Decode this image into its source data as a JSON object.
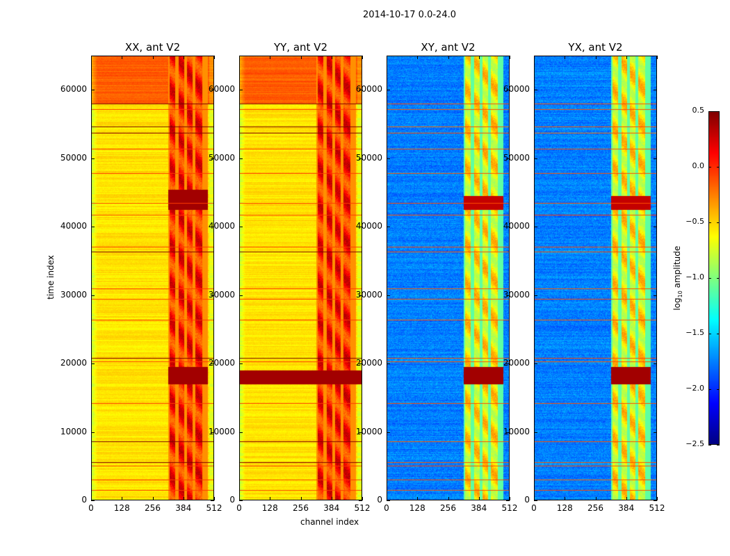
{
  "chart_data": {
    "type": "heatmap",
    "title": "2014-10-17 0.0-24.0",
    "xlabel": "channel index",
    "ylabel": "time index",
    "xlim": [
      0,
      512
    ],
    "ylim": [
      0,
      65000
    ],
    "xticks": [
      "0",
      "128",
      "256",
      "384",
      "512"
    ],
    "yticks": [
      "0",
      "10000",
      "20000",
      "30000",
      "40000",
      "50000",
      "60000"
    ],
    "ytick_values": [
      0,
      10000,
      20000,
      30000,
      40000,
      50000,
      60000
    ],
    "colormap": "jet",
    "colorbar": {
      "label": "log10 amplitude",
      "label_main": "log",
      "label_sub": "10",
      "label_rest": " amplitude",
      "clim": [
        -2.5,
        0.5
      ],
      "ticks": [
        "0.5",
        "0.0",
        "−0.5",
        "−1.0",
        "−1.5",
        "−2.0",
        "−2.5"
      ],
      "tick_values": [
        0.5,
        0,
        -0.5,
        -1,
        -1.5,
        -2,
        -2.5
      ]
    },
    "panels": [
      {
        "title": "XX, ant V2",
        "base_level": -0.55,
        "upper_level": -0.15,
        "band_level": 0.05,
        "hot_time": [
          17000,
          19500
        ],
        "hot_full_width": false
      },
      {
        "title": "YY, ant V2",
        "base_level": -0.55,
        "upper_level": -0.15,
        "band_level": 0.05,
        "hot_time": [
          17000,
          19000
        ],
        "hot_full_width": true
      },
      {
        "title": "XY, ant V2",
        "base_level": -1.75,
        "upper_level": -1.75,
        "band_level": -0.6,
        "hot_time": [
          17000,
          19500
        ],
        "hot_full_width": false
      },
      {
        "title": "YX, ant V2",
        "base_level": -1.75,
        "upper_level": -1.75,
        "band_level": -0.6,
        "hot_time": [
          17000,
          19500
        ],
        "hot_full_width": false
      }
    ],
    "band_channels": [
      320,
      485
    ],
    "upper_region_start_time": 58000,
    "flagged_times": [
      1525,
      3050,
      5085,
      5590,
      8640,
      14240,
      20340,
      20850,
      26440,
      29500,
      31020,
      36400,
      37120,
      41700,
      43430,
      47800,
      51360,
      53700,
      54600,
      57150,
      57970
    ]
  }
}
